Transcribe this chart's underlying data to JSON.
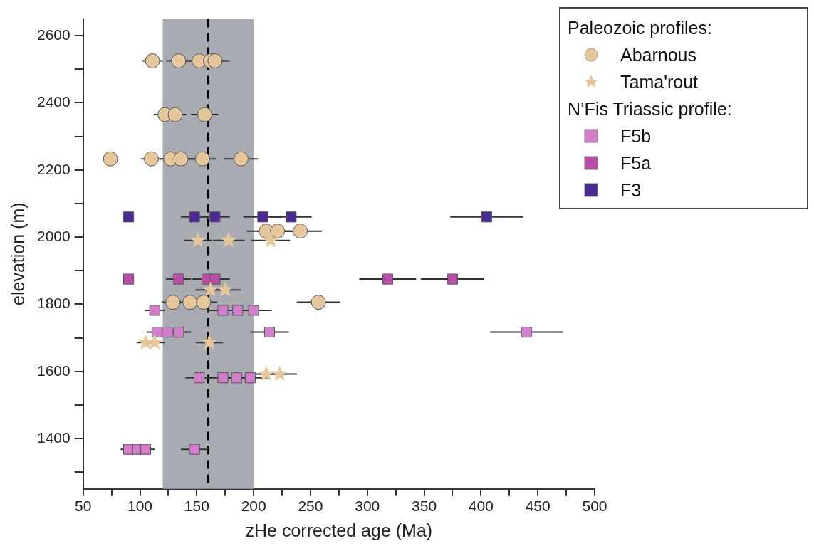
{
  "chart_data": {
    "type": "scatter",
    "xlabel": "zHe corrected age (Ma)",
    "ylabel": "elevation (m)",
    "legend_title": "Paleozoic profiles:",
    "annotations": [
      "N’Fis Triassic profile:"
    ],
    "xlim": [
      50,
      500
    ],
    "xticks": [
      50,
      {
        "value": 75,
        "label": null
      },
      100,
      {
        "value": 125,
        "label": null
      },
      150,
      {
        "value": 175,
        "label": null
      },
      200,
      {
        "value": 225,
        "label": null
      },
      250,
      {
        "value": 275,
        "label": null
      },
      300,
      {
        "value": 325,
        "label": null
      },
      350,
      {
        "value": 375,
        "label": null
      },
      400,
      {
        "value": 425,
        "label": null
      },
      450,
      {
        "value": 475,
        "label": null
      },
      500
    ],
    "ylim": [
      1250,
      2650
    ],
    "yticks": [
      {
        "value": 1300,
        "label": null
      },
      1400,
      {
        "value": 1500,
        "label": null
      },
      1600,
      {
        "value": 1700,
        "label": null
      },
      1800,
      {
        "value": 1900,
        "label": null
      },
      2000,
      {
        "value": 2100,
        "label": null
      },
      2200,
      {
        "value": 2300,
        "label": null
      },
      2400,
      {
        "value": 2500,
        "label": null
      },
      2600
    ],
    "grid": false,
    "legend": "top right",
    "bands": [
      {
        "axis": "x",
        "from": 120,
        "to": 200,
        "color": "#a9abb2"
      }
    ],
    "ref_lines": [
      {
        "axis": "x",
        "value": 160,
        "color": "#000000",
        "line_style": "dashed"
      }
    ],
    "series": [
      {
        "name": "Abarnous",
        "color": "#e6c79c",
        "marker": "circle",
        "x": [
          111,
          134,
          152,
          162,
          166,
          122,
          131,
          157,
          74,
          110,
          127,
          136,
          155,
          189,
          211,
          221,
          241,
          129,
          144,
          156,
          257
        ],
        "values": [
          2525,
          2525,
          2525,
          2525,
          2525,
          2365,
          2365,
          2365,
          2233,
          2233,
          2233,
          2233,
          2233,
          2233,
          2018,
          2018,
          2018,
          1806,
          1806,
          1806,
          1806
        ],
        "xerrors": [
          9,
          11,
          12,
          13,
          13,
          10,
          10,
          12,
          null,
          9,
          10,
          11,
          12,
          15,
          17,
          18,
          19,
          10,
          null,
          12,
          19
        ]
      },
      {
        "name": "Tama'rout",
        "color": "#e6c79c",
        "marker": "star",
        "x": [
          151,
          178,
          215,
          162,
          175,
          105,
          113,
          161,
          211,
          223
        ],
        "values": [
          1990,
          1990,
          1990,
          1843,
          1843,
          1686,
          1686,
          1686,
          1592,
          1592
        ],
        "xerrors": [
          12,
          14,
          17,
          13,
          14,
          8,
          9,
          12,
          17,
          15
        ]
      },
      {
        "name": "F5b",
        "color": "#d17fcb",
        "marker": "square",
        "x": [
          113,
          173,
          186,
          200,
          115,
          124,
          134,
          214,
          440,
          152,
          173,
          185,
          197,
          90,
          98,
          105,
          148
        ],
        "values": [
          1782,
          1782,
          1782,
          1782,
          1717,
          1717,
          1717,
          1717,
          1717,
          1581,
          1581,
          1581,
          1581,
          1368,
          1368,
          1368,
          1368
        ],
        "xerrors": [
          9,
          14,
          null,
          16,
          9,
          null,
          11,
          17,
          32,
          12,
          14,
          15,
          16,
          7,
          null,
          8,
          12
        ]
      },
      {
        "name": "F5a",
        "color": "#b84ea8",
        "marker": "square",
        "x": [
          90,
          134,
          159,
          166,
          318,
          375
        ],
        "values": [
          1875,
          1875,
          1875,
          1875,
          1875,
          1875
        ],
        "xerrors": [
          null,
          11,
          13,
          13,
          25,
          28
        ]
      },
      {
        "name": "F3",
        "color": "#4b2a96",
        "marker": "square",
        "x": [
          90,
          148,
          166,
          208,
          233,
          405
        ],
        "values": [
          2060,
          2060,
          2060,
          2060,
          2060,
          2060
        ],
        "xerrors": [
          null,
          12,
          13,
          17,
          18,
          32
        ]
      }
    ]
  }
}
